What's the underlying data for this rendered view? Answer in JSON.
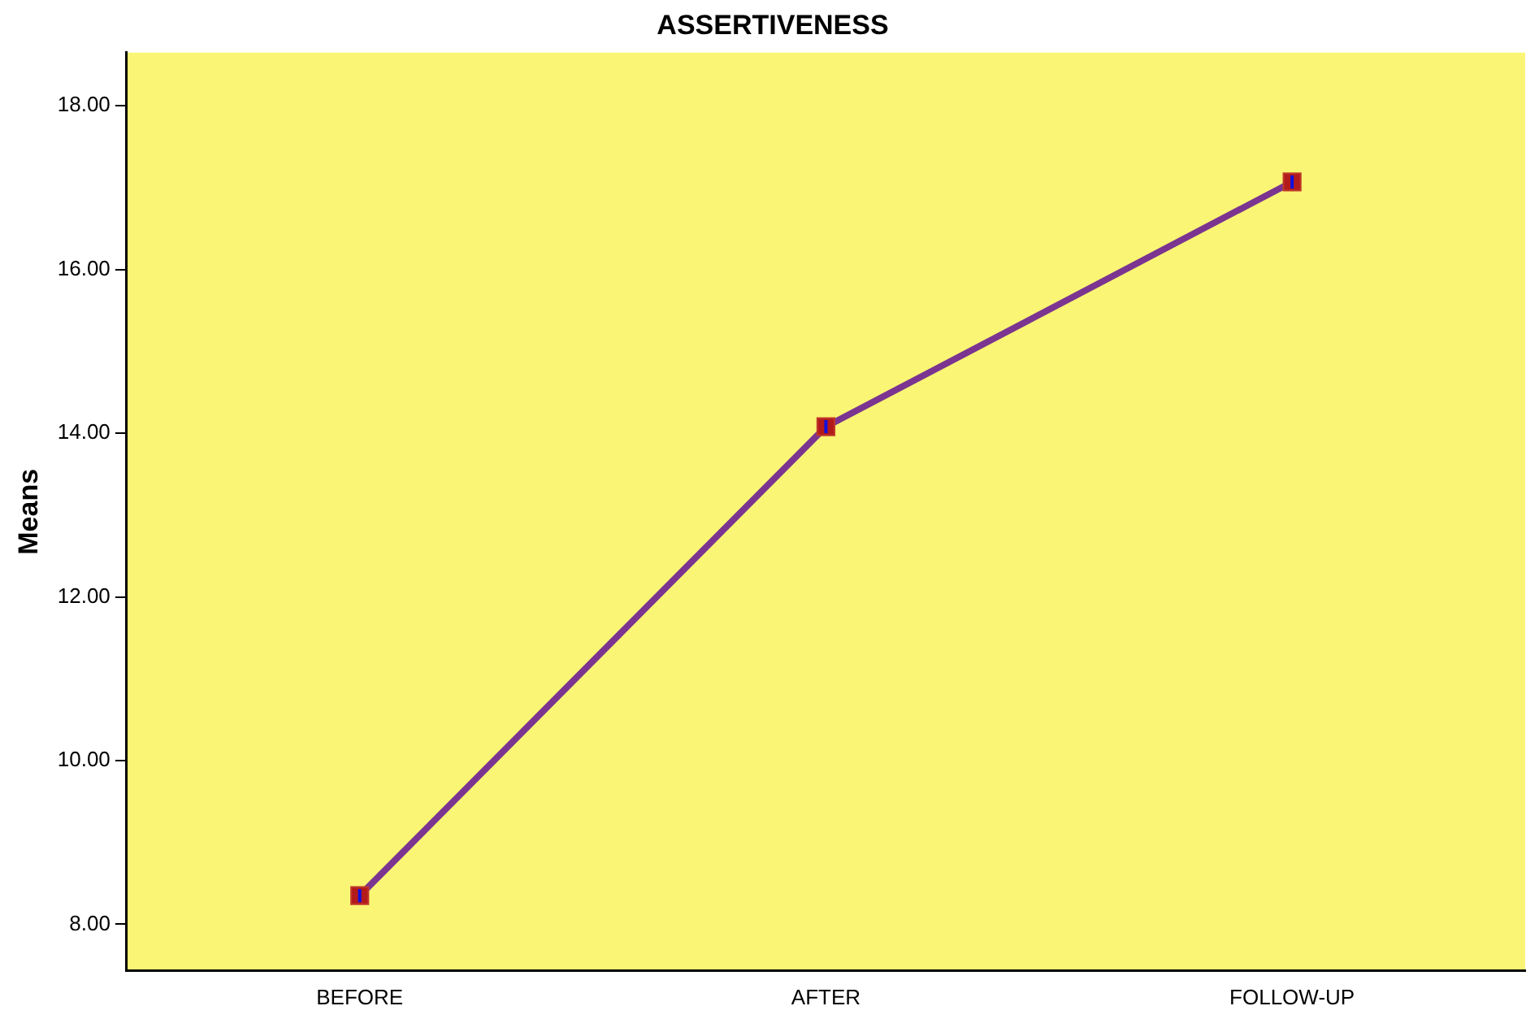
{
  "chart_data": {
    "type": "line",
    "title": "ASSERTIVENESS",
    "ylabel": "Means",
    "categories": [
      "BEFORE",
      "AFTER",
      "FOLLOW-UP"
    ],
    "series": [
      {
        "color": "#7b3590",
        "values": [
          8.35,
          14.08,
          17.07
        ],
        "errors": [
          0.08,
          0.08,
          0.08
        ]
      }
    ],
    "ylim": [
      7.43,
      18.65
    ],
    "yticks": [
      {
        "value": 8,
        "label": "8.00"
      },
      {
        "value": 10,
        "label": "10.00"
      },
      {
        "value": 12,
        "label": "12.00"
      },
      {
        "value": 14,
        "label": "14.00"
      },
      {
        "value": 16,
        "label": "16.00"
      },
      {
        "value": 18,
        "label": "18.00"
      }
    ],
    "marker": "square",
    "line_style": "solid",
    "grid": false,
    "legend": false
  }
}
